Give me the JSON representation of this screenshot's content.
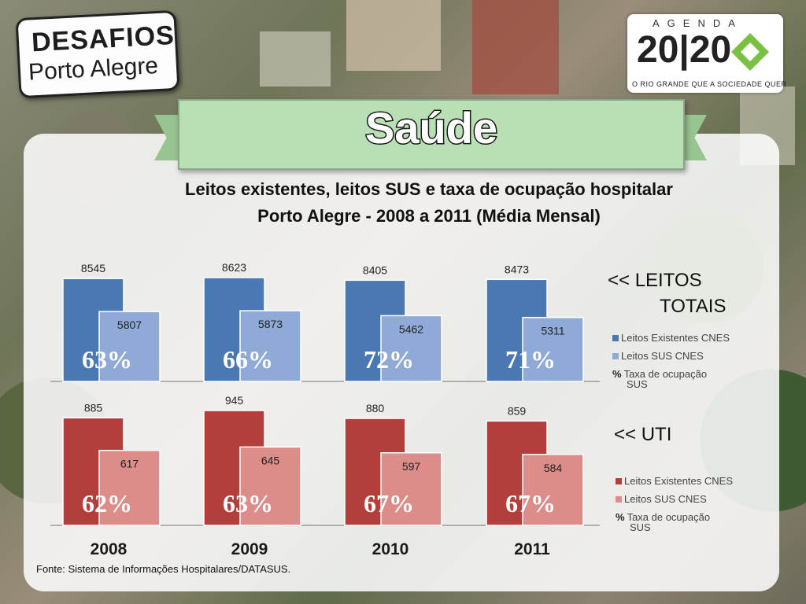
{
  "header": {
    "logo_left_line1": "DESAFIOS",
    "logo_left_line2": "Porto Alegre",
    "logo_right_agenda": "AGENDA",
    "logo_right_year": "20|20",
    "logo_right_tagline": "O RIO GRANDE QUE A SOCIEDADE QUER",
    "page_title": "Saúde"
  },
  "chart_title_line1": "Leitos existentes, leitos SUS e taxa de ocupação hospitalar",
  "chart_title_line2": "Porto Alegre - 2008 a 2011 (Média Mensal)",
  "source": "Fonte: Sistema de Informações Hospitalares/DATASUS.",
  "sections": {
    "totais_line1": "<< LEITOS",
    "totais_line2": "TOTAIS",
    "uti": "<< UTI"
  },
  "legends": {
    "totais": [
      "Leitos Existentes CNES",
      "Leitos SUS CNES"
    ],
    "uti": [
      "Leitos Existentes CNES",
      "Leitos SUS CNES"
    ],
    "pct_symbol": "%",
    "pct_line1": "Taxa de ocupação",
    "pct_line2": "SUS"
  },
  "colors": {
    "totais_existentes": "#4a78b3",
    "totais_sus": "#8faad6",
    "uti_existentes": "#b33f3c",
    "uti_sus": "#dc8c89",
    "green_mark": "#7ac143"
  },
  "chart_data": [
    {
      "type": "bar",
      "categories": [
        "2008",
        "2009",
        "2010",
        "2011"
      ],
      "series": [
        {
          "name": "Leitos Existentes CNES",
          "values": [
            8545,
            8623,
            8405,
            8473
          ]
        },
        {
          "name": "Leitos SUS CNES",
          "values": [
            5807,
            5873,
            5462,
            5311
          ]
        }
      ],
      "occupancy_labels": [
        "63%",
        "66%",
        "72%",
        "71%"
      ],
      "ylim": [
        0,
        9000
      ]
    },
    {
      "type": "bar",
      "categories": [
        "2008",
        "2009",
        "2010",
        "2011"
      ],
      "series": [
        {
          "name": "Leitos Existentes CNES",
          "values": [
            885,
            945,
            880,
            859
          ]
        },
        {
          "name": "Leitos SUS CNES",
          "values": [
            617,
            645,
            597,
            584
          ]
        }
      ],
      "occupancy_labels": [
        "62%",
        "63%",
        "67%",
        "67%"
      ],
      "ylim": [
        0,
        1000
      ]
    }
  ]
}
